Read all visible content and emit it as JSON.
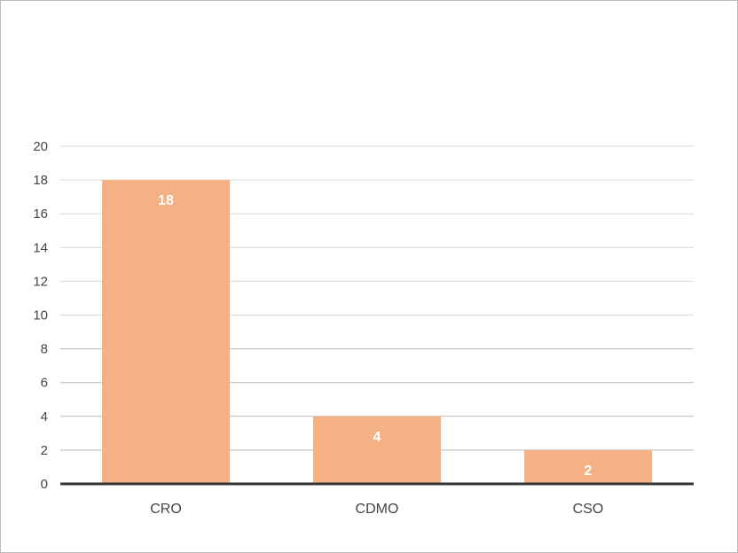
{
  "chart_data": {
    "type": "bar",
    "title": "",
    "xlabel": "",
    "ylabel": "",
    "categories": [
      "CRO",
      "CDMO",
      "CSO"
    ],
    "values": [
      18,
      4,
      2
    ],
    "data_labels": [
      "18",
      "4",
      "2"
    ],
    "ylim": [
      0,
      20
    ],
    "yticks": [
      0,
      2,
      4,
      6,
      8,
      10,
      12,
      14,
      16,
      18,
      20
    ],
    "ytick_labels": [
      "0",
      "2",
      "4",
      "6",
      "8",
      "10",
      "12",
      "14",
      "16",
      "18",
      "20"
    ],
    "grid": true,
    "legend": "none",
    "bar_color": "#f4b183",
    "gridline_color": "#d9d9d9",
    "axis_color": "#333333",
    "data_label_color": "#ffffff"
  }
}
